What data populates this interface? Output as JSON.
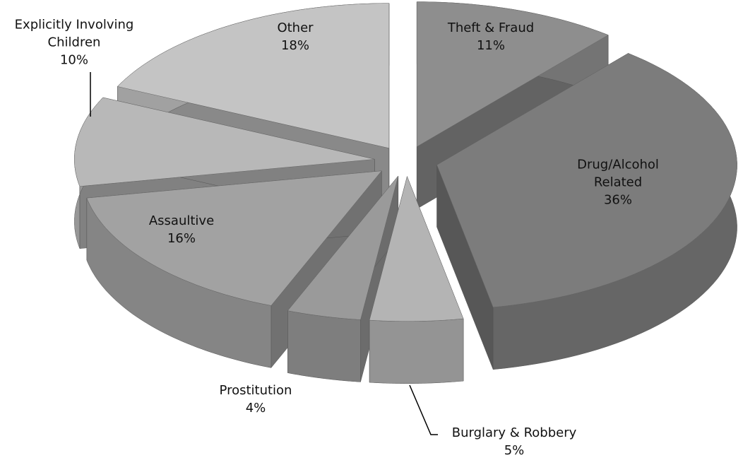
{
  "chart_data": {
    "type": "pie",
    "categories": [
      "Theft & Fraud",
      "Drug/Alcohol Related",
      "Burglary & Robbery",
      "Prostitution",
      "Assaultive",
      "Explicitly Involving Children",
      "Other"
    ],
    "values": [
      11,
      36,
      5,
      4,
      16,
      10,
      18
    ],
    "value_labels": [
      "11%",
      "36%",
      "5%",
      "4%",
      "16%",
      "10%",
      "18%"
    ],
    "colors": [
      "#8e8e8e",
      "#7c7c7c",
      "#b4b4b4",
      "#9a9a9a",
      "#a2a2a2",
      "#b8b8b8",
      "#c4c4c4"
    ],
    "exploded": true,
    "three_d": true
  }
}
